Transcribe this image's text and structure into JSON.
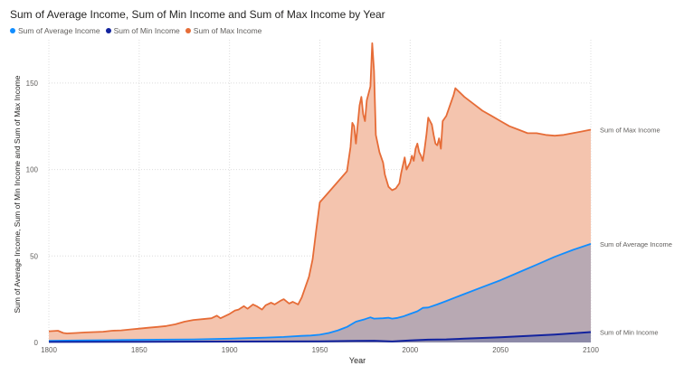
{
  "header": {
    "title": "Sum of Average Income, Sum of Min Income and Sum of Max Income by Year"
  },
  "colors": {
    "max": "#E66C37",
    "max_fill": "#F4C4AE",
    "avg": "#118DFF",
    "avg_fill": "#B8A9B3",
    "min": "#12239E",
    "min_fill": "#8D8AA8"
  },
  "chart_data": {
    "type": "area",
    "title": "Sum of Average Income, Sum of Min Income and Sum of Max Income by Year",
    "xlabel": "Year",
    "ylabel": "Sum of Average Income, Sum of Min Income and Sum of Max Income",
    "xlim": [
      1800,
      2100
    ],
    "ylim": [
      0,
      175
    ],
    "x_ticks": [
      "1800",
      "1850",
      "1900",
      "1950",
      "2000",
      "2050",
      "2100"
    ],
    "y_ticks": [
      "0",
      "50",
      "100",
      "150"
    ],
    "grid": true,
    "legend_position": "top-left",
    "series": [
      {
        "name": "Sum of Average Income",
        "color": "#118DFF",
        "end_label": "Sum of Average Income",
        "points": [
          [
            1800,
            1.0
          ],
          [
            1820,
            1.2
          ],
          [
            1840,
            1.4
          ],
          [
            1860,
            1.6
          ],
          [
            1880,
            1.8
          ],
          [
            1900,
            2.2
          ],
          [
            1910,
            2.5
          ],
          [
            1920,
            2.8
          ],
          [
            1930,
            3.2
          ],
          [
            1940,
            3.8
          ],
          [
            1945,
            4.0
          ],
          [
            1950,
            4.5
          ],
          [
            1955,
            5.5
          ],
          [
            1960,
            7.0
          ],
          [
            1965,
            9.0
          ],
          [
            1970,
            12.0
          ],
          [
            1975,
            13.5
          ],
          [
            1978,
            14.5
          ],
          [
            1980,
            13.8
          ],
          [
            1985,
            14.0
          ],
          [
            1988,
            14.3
          ],
          [
            1990,
            13.8
          ],
          [
            1993,
            14.2
          ],
          [
            1996,
            15.0
          ],
          [
            2000,
            16.5
          ],
          [
            2004,
            18.0
          ],
          [
            2007,
            20.0
          ],
          [
            2010,
            20.2
          ],
          [
            2015,
            22.0
          ],
          [
            2020,
            24.0
          ],
          [
            2025,
            26.0
          ],
          [
            2030,
            28.0
          ],
          [
            2040,
            32.0
          ],
          [
            2050,
            36.0
          ],
          [
            2060,
            40.5
          ],
          [
            2070,
            45.0
          ],
          [
            2080,
            49.5
          ],
          [
            2090,
            53.5
          ],
          [
            2100,
            57.0
          ]
        ]
      },
      {
        "name": "Sum of Min Income",
        "color": "#12239E",
        "end_label": "Sum of Min Income",
        "points": [
          [
            1800,
            0.3
          ],
          [
            1850,
            0.4
          ],
          [
            1900,
            0.5
          ],
          [
            1950,
            0.7
          ],
          [
            1970,
            0.9
          ],
          [
            1980,
            1.0
          ],
          [
            1990,
            0.6
          ],
          [
            2000,
            1.2
          ],
          [
            2010,
            1.6
          ],
          [
            2020,
            1.8
          ],
          [
            2030,
            2.2
          ],
          [
            2040,
            2.6
          ],
          [
            2050,
            3.0
          ],
          [
            2060,
            3.5
          ],
          [
            2070,
            4.0
          ],
          [
            2080,
            4.6
          ],
          [
            2090,
            5.3
          ],
          [
            2100,
            6.0
          ]
        ]
      },
      {
        "name": "Sum of Max Income",
        "color": "#E66C37",
        "end_label": "Sum of Max Income",
        "points": [
          [
            1800,
            6.5
          ],
          [
            1805,
            6.8
          ],
          [
            1808,
            5.5
          ],
          [
            1810,
            5.2
          ],
          [
            1815,
            5.5
          ],
          [
            1820,
            5.8
          ],
          [
            1825,
            6.0
          ],
          [
            1830,
            6.2
          ],
          [
            1835,
            6.8
          ],
          [
            1840,
            7.0
          ],
          [
            1845,
            7.5
          ],
          [
            1850,
            8.0
          ],
          [
            1855,
            8.5
          ],
          [
            1860,
            9.0
          ],
          [
            1865,
            9.5
          ],
          [
            1870,
            10.5
          ],
          [
            1875,
            12.0
          ],
          [
            1880,
            13.0
          ],
          [
            1885,
            13.5
          ],
          [
            1890,
            14.0
          ],
          [
            1893,
            15.5
          ],
          [
            1895,
            14.0
          ],
          [
            1900,
            16.5
          ],
          [
            1903,
            18.5
          ],
          [
            1905,
            19.0
          ],
          [
            1908,
            21.0
          ],
          [
            1910,
            19.5
          ],
          [
            1913,
            22.0
          ],
          [
            1915,
            21.0
          ],
          [
            1918,
            19.0
          ],
          [
            1920,
            21.5
          ],
          [
            1923,
            23.0
          ],
          [
            1925,
            22.0
          ],
          [
            1928,
            24.0
          ],
          [
            1930,
            25.0
          ],
          [
            1933,
            22.5
          ],
          [
            1935,
            23.5
          ],
          [
            1938,
            22.0
          ],
          [
            1940,
            26.0
          ],
          [
            1942,
            32.0
          ],
          [
            1944,
            38.0
          ],
          [
            1946,
            48.0
          ],
          [
            1948,
            65.0
          ],
          [
            1950,
            81.0
          ],
          [
            1955,
            87.0
          ],
          [
            1960,
            93.0
          ],
          [
            1965,
            99.0
          ],
          [
            1967,
            113.0
          ],
          [
            1968,
            127.0
          ],
          [
            1969,
            125.0
          ],
          [
            1970,
            115.0
          ],
          [
            1971,
            126.0
          ],
          [
            1972,
            137.0
          ],
          [
            1973,
            142.0
          ],
          [
            1974,
            132.0
          ],
          [
            1975,
            128.0
          ],
          [
            1976,
            140.0
          ],
          [
            1978,
            148.0
          ],
          [
            1979,
            173.0
          ],
          [
            1980,
            157.0
          ],
          [
            1981,
            120.0
          ],
          [
            1983,
            110.0
          ],
          [
            1985,
            104.0
          ],
          [
            1986,
            97.0
          ],
          [
            1988,
            90.0
          ],
          [
            1990,
            88.0
          ],
          [
            1992,
            89.0
          ],
          [
            1994,
            92.0
          ],
          [
            1995,
            98.0
          ],
          [
            1997,
            107.0
          ],
          [
            1998,
            100.0
          ],
          [
            2000,
            104.0
          ],
          [
            2001,
            108.0
          ],
          [
            2002,
            105.0
          ],
          [
            2003,
            112.0
          ],
          [
            2004,
            115.0
          ],
          [
            2005,
            110.0
          ],
          [
            2006,
            108.0
          ],
          [
            2007,
            105.0
          ],
          [
            2008,
            112.0
          ],
          [
            2009,
            120.0
          ],
          [
            2010,
            130.0
          ],
          [
            2011,
            128.0
          ],
          [
            2012,
            126.0
          ],
          [
            2013,
            120.0
          ],
          [
            2014,
            115.0
          ],
          [
            2015,
            114.0
          ],
          [
            2016,
            118.0
          ],
          [
            2017,
            112.0
          ],
          [
            2018,
            128.0
          ],
          [
            2020,
            131.0
          ],
          [
            2022,
            137.0
          ],
          [
            2024,
            143.0
          ],
          [
            2025,
            147.0
          ],
          [
            2030,
            142.0
          ],
          [
            2035,
            138.0
          ],
          [
            2040,
            134.0
          ],
          [
            2045,
            131.0
          ],
          [
            2050,
            128.0
          ],
          [
            2055,
            125.0
          ],
          [
            2060,
            123.0
          ],
          [
            2065,
            121.0
          ],
          [
            2070,
            121.0
          ],
          [
            2075,
            120.0
          ],
          [
            2080,
            119.5
          ],
          [
            2085,
            120.0
          ],
          [
            2090,
            121.0
          ],
          [
            2095,
            122.0
          ],
          [
            2100,
            123.0
          ]
        ]
      }
    ]
  }
}
